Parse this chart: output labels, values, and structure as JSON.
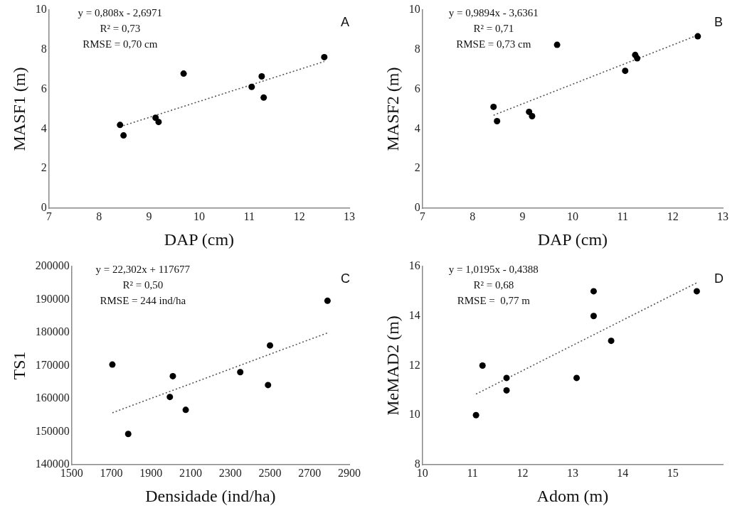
{
  "chart_data": [
    {
      "type": "scatter",
      "xlabel": "DAP (cm)",
      "ylabel": "MASF1 (m)",
      "xlim": [
        7,
        13
      ],
      "xticks": [
        7,
        8,
        9,
        10,
        11,
        12,
        13
      ],
      "ylim": [
        0,
        10
      ],
      "yticks": [
        0,
        2,
        4,
        6,
        8,
        10
      ],
      "annotations": [
        "A",
        "y = 0,808x - 2,6971",
        "R² = 0,73",
        "RMSE = 0,70 cm"
      ],
      "series": [
        {
          "type": "scatter",
          "marker": "circle",
          "color": "#000000",
          "x": [
            8.42,
            8.49,
            9.13,
            9.19,
            9.69,
            11.05,
            11.25,
            11.29,
            12.5
          ],
          "values": [
            4.2,
            3.67,
            4.56,
            4.35,
            6.79,
            6.12,
            6.65,
            5.58,
            7.62
          ]
        },
        {
          "type": "line",
          "color": "#555555",
          "line_style": "dotted",
          "x": [
            8.42,
            12.5
          ],
          "values": [
            4.11,
            7.4
          ]
        }
      ]
    },
    {
      "type": "scatter",
      "xlabel": "DAP (cm)",
      "ylabel": "MASF2 (m)",
      "xlim": [
        7,
        13
      ],
      "xticks": [
        7,
        8,
        9,
        10,
        11,
        12,
        13
      ],
      "ylim": [
        0,
        10
      ],
      "yticks": [
        0,
        2,
        4,
        6,
        8,
        10
      ],
      "annotations": [
        "B",
        "y = 0,9894x - 3,6361",
        "R² = 0,71",
        "RMSE = 0,73 cm"
      ],
      "series": [
        {
          "type": "scatter",
          "marker": "circle",
          "color": "#000000",
          "x": [
            8.42,
            8.49,
            9.13,
            9.19,
            9.69,
            11.05,
            11.25,
            11.29,
            12.5
          ],
          "values": [
            5.11,
            4.39,
            4.86,
            4.64,
            8.24,
            6.93,
            7.73,
            7.56,
            8.67
          ]
        },
        {
          "type": "line",
          "color": "#555555",
          "line_style": "dotted",
          "x": [
            8.42,
            12.5
          ],
          "values": [
            4.69,
            8.73
          ]
        }
      ]
    },
    {
      "type": "scatter",
      "xlabel": "Densidade (ind/ha)",
      "ylabel": "TS1",
      "xlim": [
        1500,
        2900
      ],
      "xticks": [
        1500,
        1700,
        1900,
        2100,
        2300,
        2500,
        2700,
        2900
      ],
      "ylim": [
        140000,
        200000
      ],
      "yticks": [
        140000,
        150000,
        160000,
        170000,
        180000,
        190000,
        200000
      ],
      "annotations": [
        "C",
        "y = 22,302x + 117677",
        "R² = 0,50",
        "RMSE = 244 ind/ha"
      ],
      "series": [
        {
          "type": "scatter",
          "marker": "circle",
          "color": "#000000",
          "x": [
            1705,
            1785,
            1995,
            2010,
            2075,
            2350,
            2490,
            2500,
            2790
          ],
          "values": [
            170300,
            149300,
            160500,
            166800,
            156600,
            168000,
            164100,
            176100,
            189600
          ]
        },
        {
          "type": "line",
          "color": "#555555",
          "line_style": "dotted",
          "x": [
            1705,
            2790
          ],
          "values": [
            155700,
            179900
          ]
        }
      ]
    },
    {
      "type": "scatter",
      "xlabel": "Adom (m)",
      "ylabel": "MeMAD2 (m)",
      "xlim": [
        10,
        16
      ],
      "xticks": [
        10,
        11,
        12,
        13,
        14,
        15
      ],
      "ylim": [
        8,
        16
      ],
      "yticks": [
        8,
        10,
        12,
        14,
        16
      ],
      "annotations": [
        "D",
        "y = 1,0195x - 0,4388",
        "R² = 0,68",
        "RMSE =  0,77 m"
      ],
      "series": [
        {
          "type": "scatter",
          "marker": "circle",
          "color": "#000000",
          "x": [
            11.07,
            11.2,
            11.68,
            11.68,
            13.08,
            13.42,
            13.42,
            13.77,
            15.48
          ],
          "values": [
            10,
            12,
            11.5,
            11,
            11.5,
            15,
            14,
            13,
            15
          ]
        },
        {
          "type": "line",
          "color": "#555555",
          "line_style": "dotted",
          "x": [
            11.07,
            15.48
          ],
          "values": [
            10.85,
            15.34
          ]
        }
      ]
    }
  ]
}
